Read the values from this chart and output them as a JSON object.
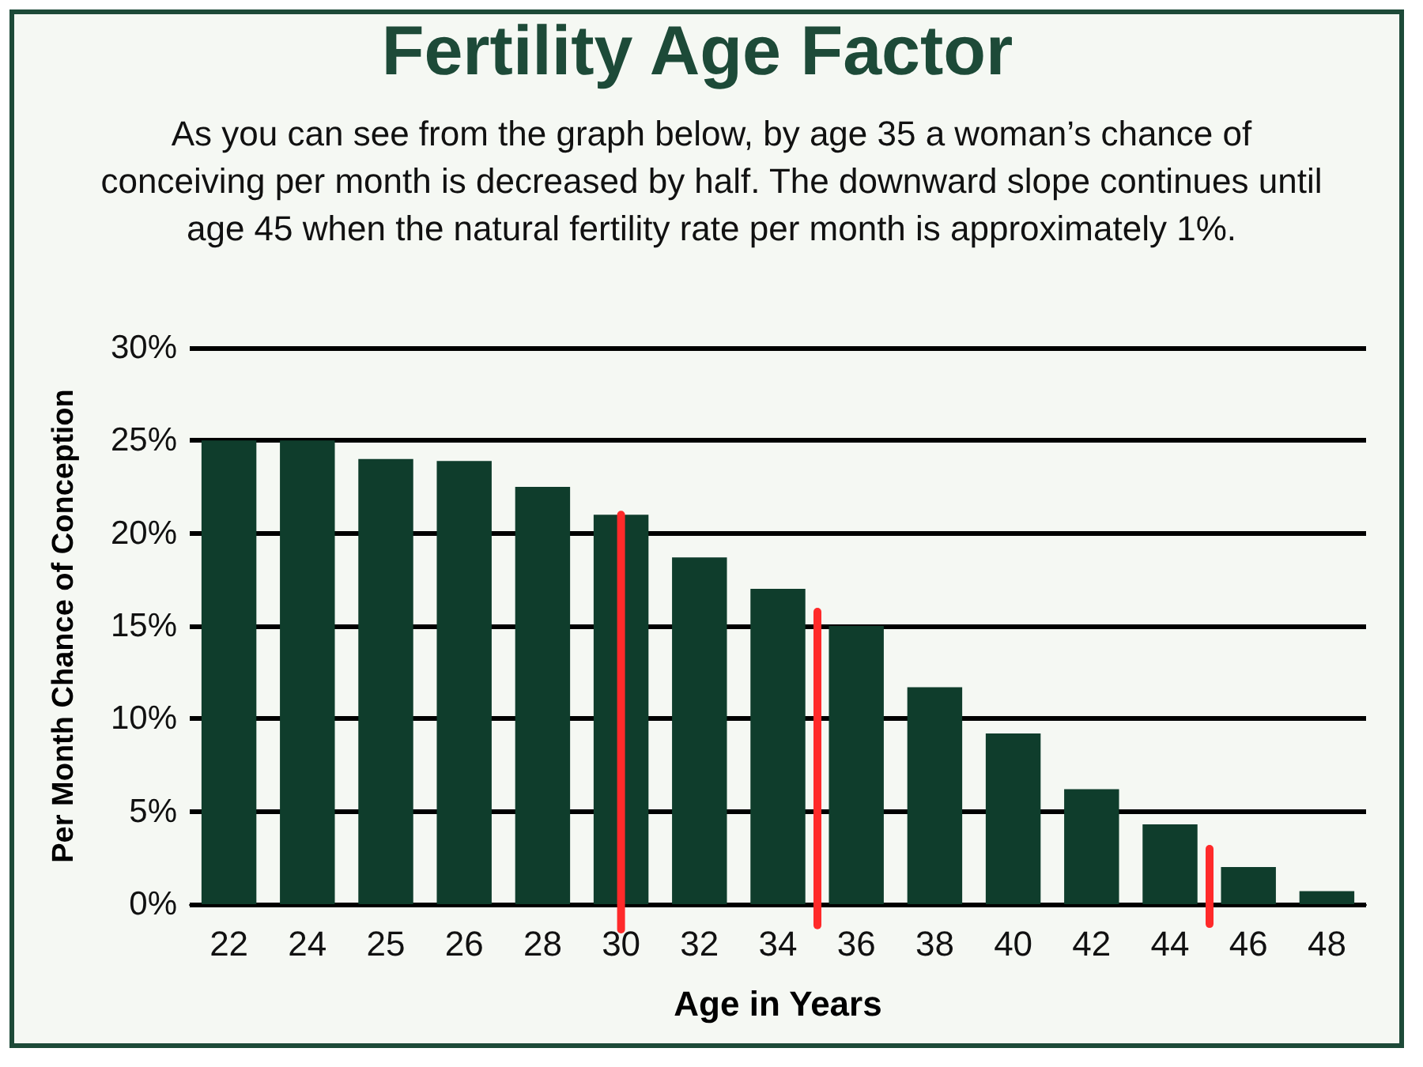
{
  "chart_data": {
    "type": "bar",
    "title": "Fertility Age Factor",
    "subtitle": "As you can see from the graph below, by age 35 a woman’s chance of conceiving per month is decreased by half. The downward slope continues until age 45 when the natural fertility rate per month is approximately 1%.",
    "xlabel": "Age in Years",
    "ylabel": "Per Month Chance of Conception",
    "categories": [
      "22",
      "24",
      "25",
      "26",
      "28",
      "30",
      "32",
      "34",
      "36",
      "38",
      "40",
      "42",
      "44",
      "46",
      "48"
    ],
    "values": [
      25,
      25,
      24,
      23.9,
      22.5,
      21,
      18.7,
      17,
      15,
      11.7,
      9.2,
      6.2,
      4.3,
      2,
      0.7
    ],
    "color": "#0f3d2c",
    "ylim": [
      0,
      30
    ],
    "yticks": [
      {
        "value": 0,
        "label": "0%"
      },
      {
        "value": 5,
        "label": "5%"
      },
      {
        "value": 10,
        "label": "10%"
      },
      {
        "value": 15,
        "label": "15%"
      },
      {
        "value": 20,
        "label": "20%"
      },
      {
        "value": 25,
        "label": "25%"
      },
      {
        "value": 30,
        "label": "30%"
      }
    ],
    "grid": "y",
    "ref_lines": [
      {
        "axis": "x",
        "value": "30",
        "color": "#ff2a2a"
      }
    ]
  }
}
